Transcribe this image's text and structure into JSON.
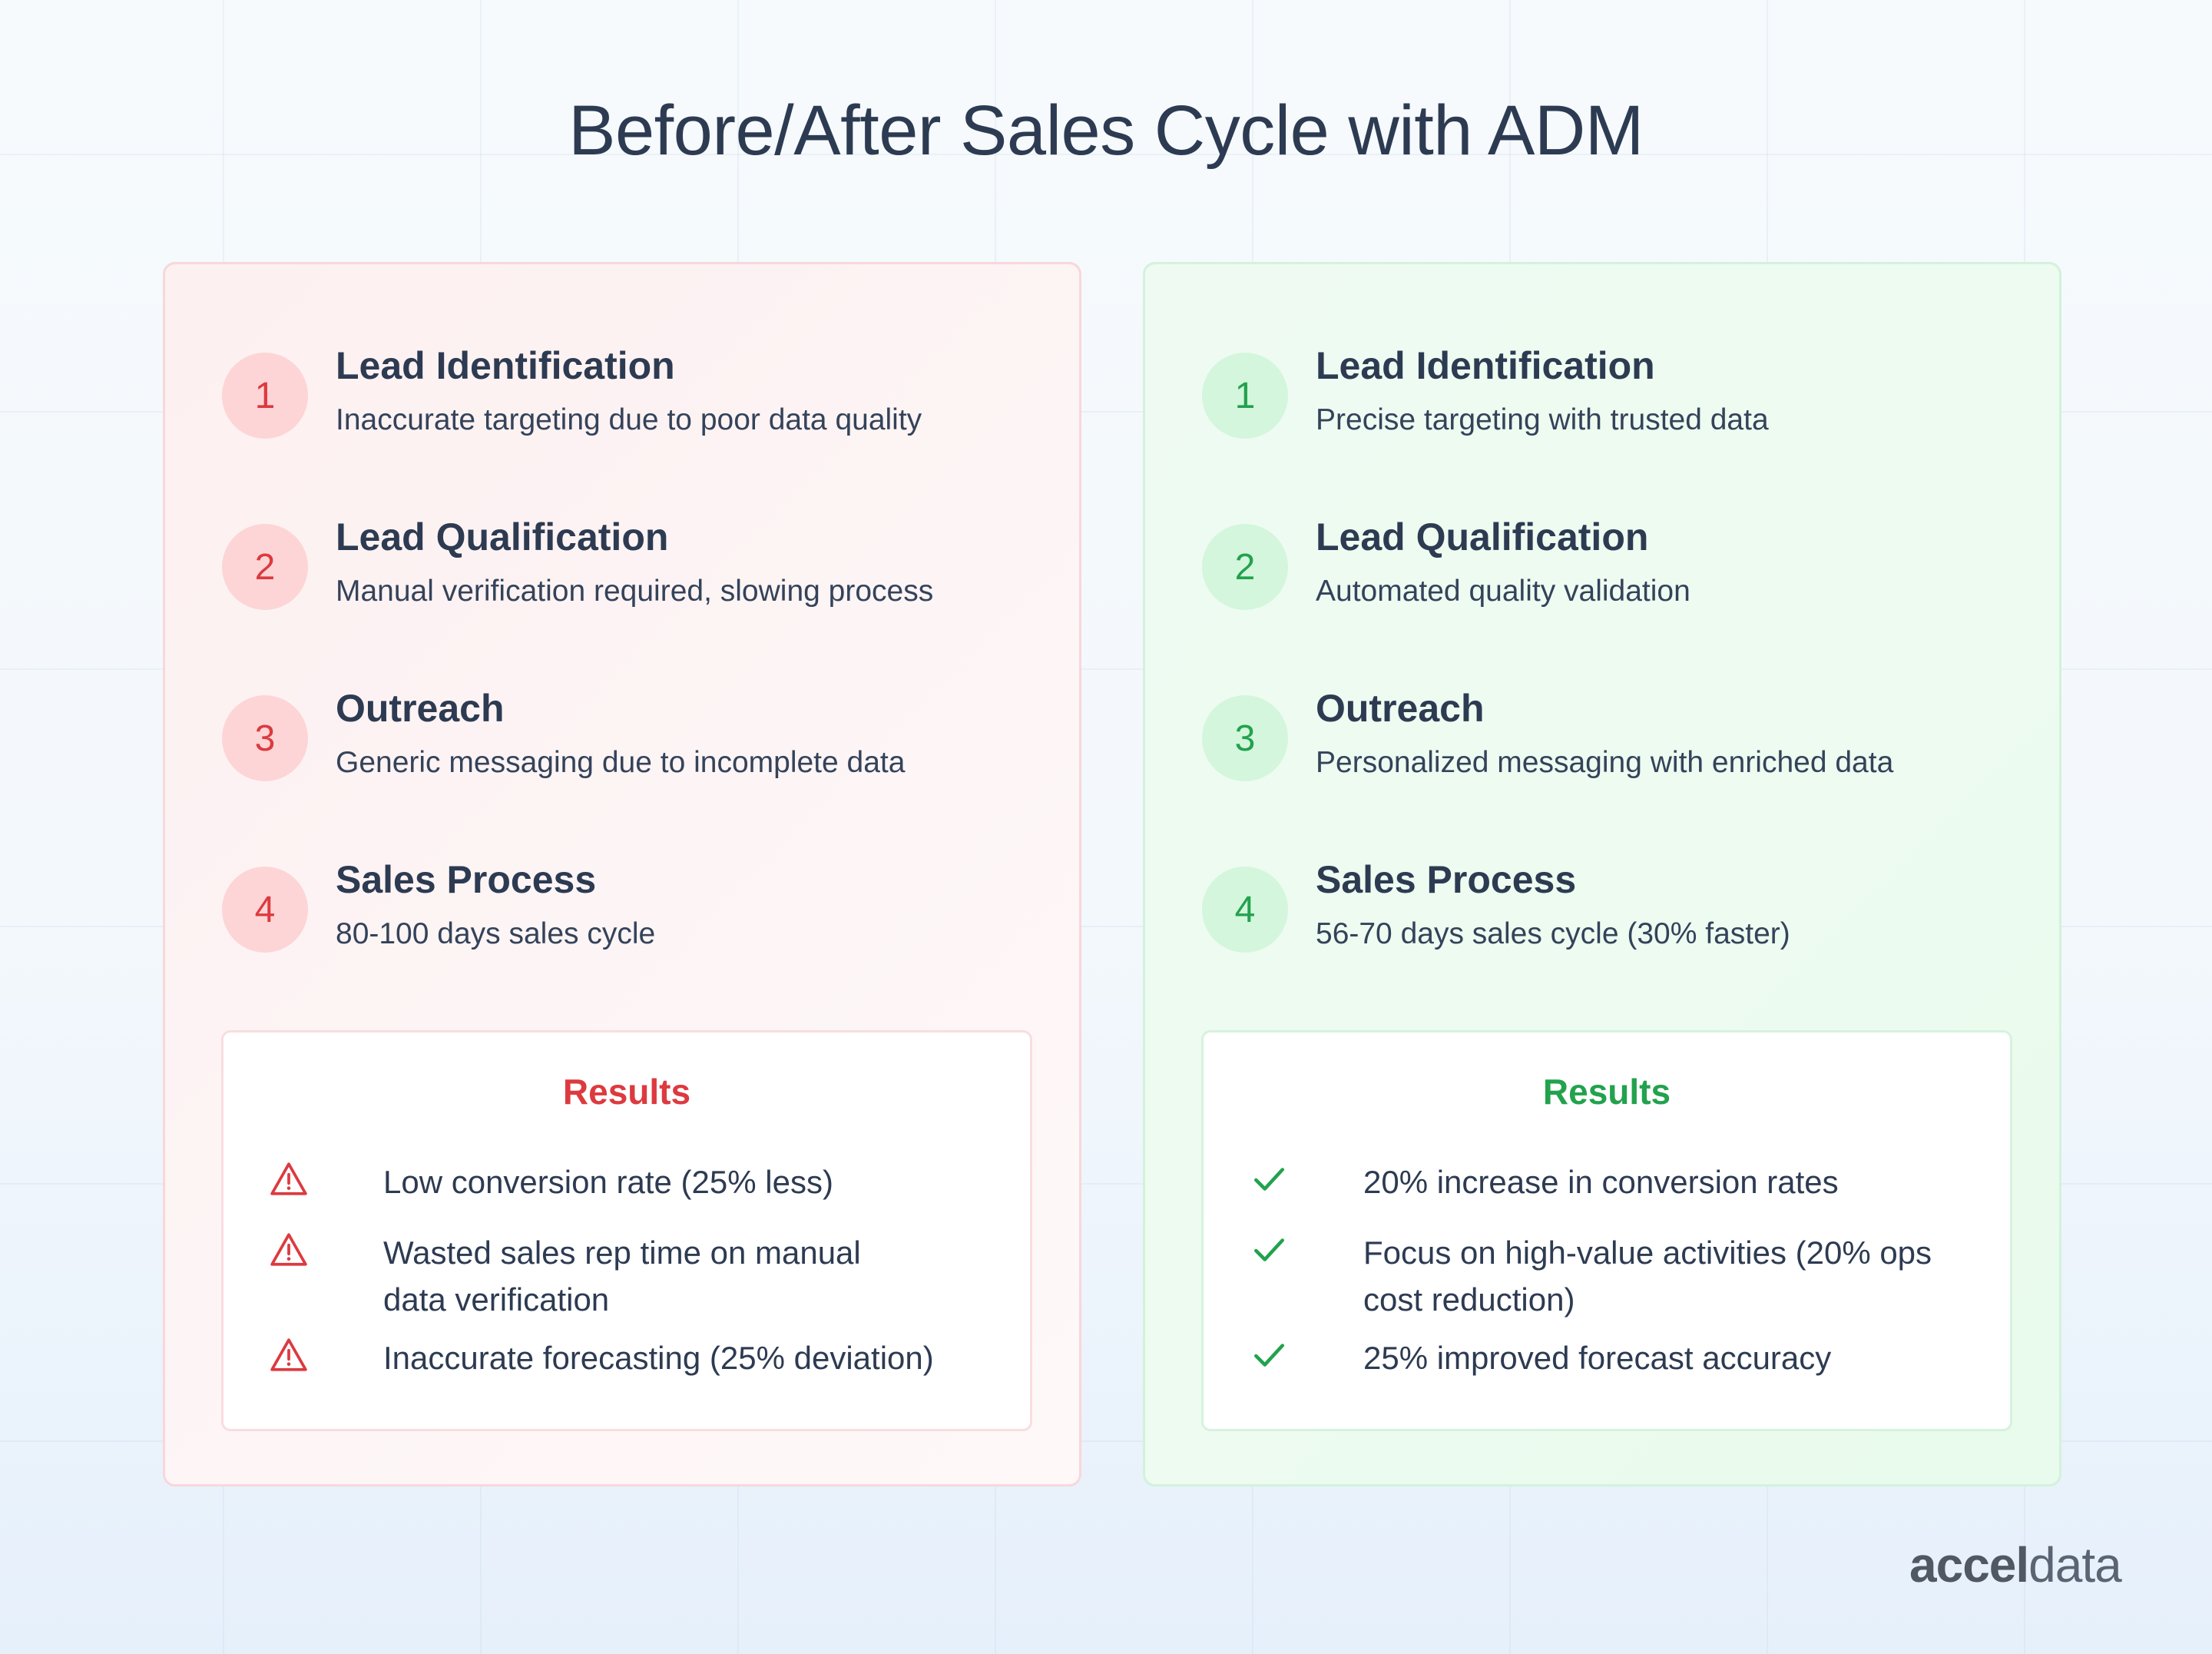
{
  "title": "Before/After Sales Cycle with ADM",
  "before": {
    "steps": [
      {
        "number": "1",
        "title": "Lead Identification",
        "description": "Inaccurate targeting due to poor data quality"
      },
      {
        "number": "2",
        "title": "Lead Qualification",
        "description": "Manual verification required, slowing process"
      },
      {
        "number": "3",
        "title": "Outreach",
        "description": "Generic messaging due to incomplete data"
      },
      {
        "number": "4",
        "title": "Sales Process",
        "description": "80-100 days sales cycle"
      }
    ],
    "results_title": "Results",
    "results": [
      "Low conversion rate (25% less)",
      "Wasted sales rep time on manual data verification",
      "Inaccurate forecasting (25% deviation)"
    ],
    "result_icon": "warning-triangle-icon",
    "accent_color": "#dc3a3f"
  },
  "after": {
    "steps": [
      {
        "number": "1",
        "title": "Lead Identification",
        "description": "Precise targeting with trusted data"
      },
      {
        "number": "2",
        "title": "Lead Qualification",
        "description": "Automated quality validation"
      },
      {
        "number": "3",
        "title": "Outreach",
        "description": "Personalized messaging with enriched data"
      },
      {
        "number": "4",
        "title": "Sales Process",
        "description": "56-70 days sales cycle (30% faster)"
      }
    ],
    "results_title": "Results",
    "results": [
      "20% increase in conversion rates",
      "Focus on high-value activities (20% ops cost reduction)",
      "25% improved forecast accuracy"
    ],
    "result_icon": "checkmark-icon",
    "accent_color": "#22a24d"
  },
  "logo": {
    "part1": "accel",
    "part2": "data"
  }
}
